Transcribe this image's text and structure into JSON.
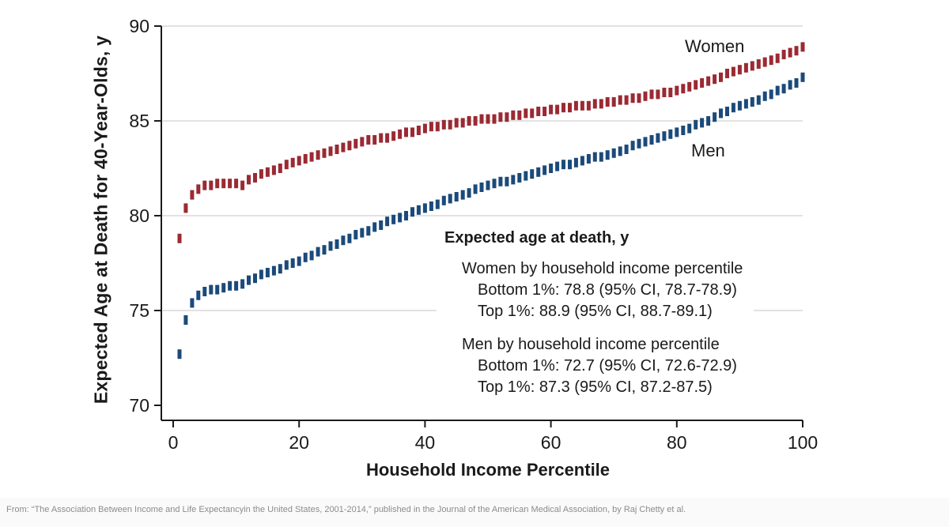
{
  "chart": {
    "y_axis_label": "Expected Age at Death for 40-Year-Olds, y",
    "x_axis_label": "Household Income Percentile",
    "series_labels": {
      "women": "Women",
      "men": "Men"
    }
  },
  "annotation": {
    "title": "Expected age at death, y",
    "women_header": "Women by household income percentile",
    "women_bottom": "Bottom 1%: 78.8 (95% CI, 78.7-78.9)",
    "women_top": "Top 1%: 88.9 (95% CI, 88.7-89.1)",
    "men_header": "Men by household income percentile",
    "men_bottom": "Bottom 1%: 72.7 (95% CI, 72.6-72.9)",
    "men_top": "Top 1%: 87.3 (95% CI, 87.2-87.5)"
  },
  "footer": {
    "source": "From: “The Association Between Income and Life Expectancyin the United States, 2001-2014,” published in the Journal of the American Medical Association, by Raj Chetty et al."
  },
  "colors": {
    "women": "#9a2a33",
    "men": "#1b4a7a",
    "axis": "#1a1a1a",
    "gridline": "#d9d9d9",
    "footer_text": "#8c8c8c"
  },
  "chart_data": {
    "type": "scatter",
    "marker": "vertical-dash",
    "title": "",
    "xlabel": "Household Income Percentile",
    "ylabel": "Expected Age at Death for 40-Year-Olds, y",
    "xlim": [
      0,
      100
    ],
    "ylim": [
      69.2,
      90
    ],
    "x_ticks": [
      0,
      20,
      40,
      60,
      80,
      100
    ],
    "y_ticks": [
      70,
      75,
      80,
      85,
      90
    ],
    "gridline_y_values": [
      75,
      80,
      85,
      90
    ],
    "grid": true,
    "legend_position": "inline-labels",
    "ci_half_width_y": 0.25,
    "x": [
      1,
      2,
      3,
      4,
      5,
      6,
      7,
      8,
      9,
      10,
      11,
      12,
      13,
      14,
      15,
      16,
      17,
      18,
      19,
      20,
      21,
      22,
      23,
      24,
      25,
      26,
      27,
      28,
      29,
      30,
      31,
      32,
      33,
      34,
      35,
      36,
      37,
      38,
      39,
      40,
      41,
      42,
      43,
      44,
      45,
      46,
      47,
      48,
      49,
      50,
      51,
      52,
      53,
      54,
      55,
      56,
      57,
      58,
      59,
      60,
      61,
      62,
      63,
      64,
      65,
      66,
      67,
      68,
      69,
      70,
      71,
      72,
      73,
      74,
      75,
      76,
      77,
      78,
      79,
      80,
      81,
      82,
      83,
      84,
      85,
      86,
      87,
      88,
      89,
      90,
      91,
      92,
      93,
      94,
      95,
      96,
      97,
      98,
      99,
      100
    ],
    "series": [
      {
        "name": "Women",
        "color": "#9a2a33",
        "bottom_1pct": 78.8,
        "top_1pct": 88.9,
        "values": [
          78.8,
          80.4,
          81.1,
          81.4,
          81.6,
          81.6,
          81.7,
          81.7,
          81.7,
          81.7,
          81.6,
          81.9,
          82.0,
          82.2,
          82.3,
          82.4,
          82.5,
          82.7,
          82.8,
          82.9,
          83.0,
          83.1,
          83.2,
          83.3,
          83.4,
          83.5,
          83.6,
          83.7,
          83.8,
          83.9,
          84.0,
          84.0,
          84.1,
          84.1,
          84.2,
          84.3,
          84.4,
          84.4,
          84.5,
          84.6,
          84.7,
          84.7,
          84.8,
          84.8,
          84.9,
          84.9,
          85.0,
          85.0,
          85.1,
          85.1,
          85.1,
          85.2,
          85.2,
          85.3,
          85.3,
          85.4,
          85.4,
          85.5,
          85.5,
          85.6,
          85.6,
          85.7,
          85.7,
          85.8,
          85.8,
          85.8,
          85.9,
          85.9,
          86.0,
          86.0,
          86.1,
          86.1,
          86.2,
          86.2,
          86.3,
          86.4,
          86.4,
          86.5,
          86.5,
          86.6,
          86.7,
          86.8,
          86.9,
          87.0,
          87.1,
          87.2,
          87.3,
          87.5,
          87.6,
          87.7,
          87.8,
          87.9,
          88.0,
          88.1,
          88.2,
          88.3,
          88.5,
          88.6,
          88.7,
          88.9
        ]
      },
      {
        "name": "Men",
        "color": "#1b4a7a",
        "bottom_1pct": 72.7,
        "top_1pct": 87.3,
        "values": [
          72.7,
          74.5,
          75.4,
          75.8,
          76.0,
          76.1,
          76.1,
          76.2,
          76.3,
          76.3,
          76.4,
          76.6,
          76.7,
          76.9,
          77.0,
          77.1,
          77.2,
          77.4,
          77.5,
          77.6,
          77.8,
          77.9,
          78.1,
          78.2,
          78.4,
          78.5,
          78.7,
          78.8,
          79.0,
          79.1,
          79.2,
          79.4,
          79.5,
          79.7,
          79.8,
          79.9,
          80.0,
          80.2,
          80.3,
          80.4,
          80.5,
          80.6,
          80.8,
          80.9,
          81.0,
          81.1,
          81.2,
          81.4,
          81.5,
          81.6,
          81.7,
          81.8,
          81.8,
          81.9,
          82.0,
          82.1,
          82.2,
          82.3,
          82.4,
          82.5,
          82.6,
          82.7,
          82.7,
          82.8,
          82.9,
          83.0,
          83.1,
          83.1,
          83.2,
          83.3,
          83.4,
          83.5,
          83.7,
          83.8,
          83.9,
          84.0,
          84.1,
          84.2,
          84.3,
          84.4,
          84.5,
          84.6,
          84.8,
          84.9,
          85.0,
          85.2,
          85.4,
          85.5,
          85.7,
          85.8,
          85.9,
          86.0,
          86.1,
          86.3,
          86.4,
          86.6,
          86.7,
          86.9,
          87.0,
          87.3
        ]
      }
    ]
  }
}
